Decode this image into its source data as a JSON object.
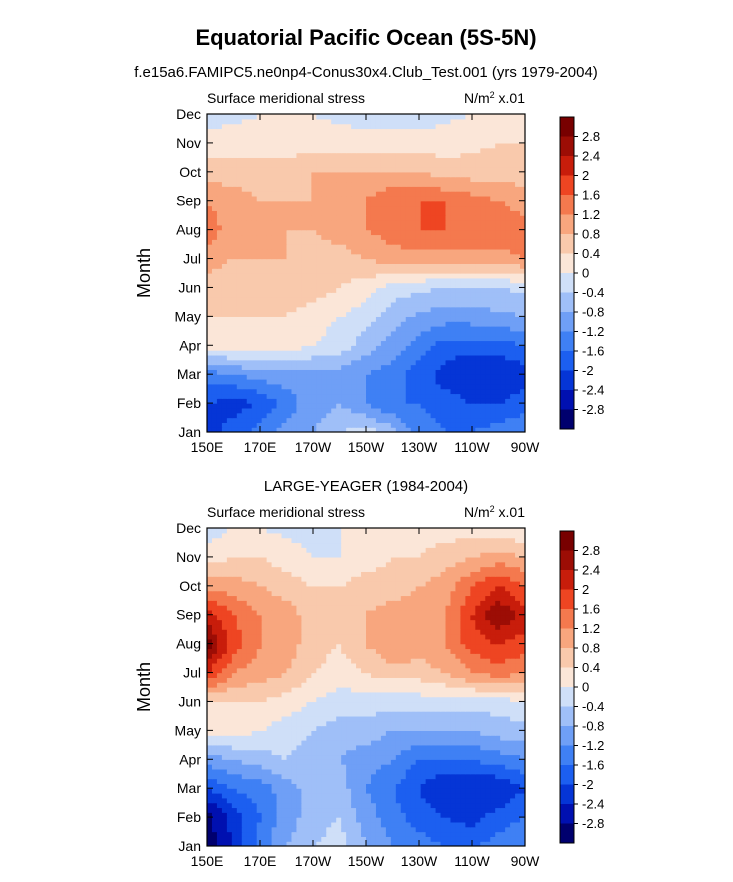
{
  "chart_data": [
    {
      "type": "heatmap",
      "title": "Equatorial Pacific Ocean (5S-5N)",
      "subtitle": "f.e15a6.FAMIPC5.ne0np4-Conus30x4.Club_Test.001 (yrs 1979-2004)",
      "left_label": "Surface meridional stress",
      "units_prefix": "N/m",
      "units_exp": "2",
      "units_suffix": " x.01",
      "ylabel": "Month",
      "x_ticks": [
        "150E",
        "170E",
        "170W",
        "150W",
        "130W",
        "110W",
        "90W"
      ],
      "y_ticks": [
        "Jan",
        "Feb",
        "Mar",
        "Apr",
        "May",
        "Jun",
        "Jul",
        "Aug",
        "Sep",
        "Oct",
        "Nov",
        "Dec"
      ],
      "x_range": [
        "150E",
        "90W"
      ],
      "levels": [
        -2.8,
        -2.4,
        -2,
        -1.6,
        -1.2,
        -0.8,
        -0.4,
        0,
        0.4,
        0.8,
        1.2,
        1.6,
        2,
        2.4,
        2.8
      ],
      "level_labels": [
        "2.8",
        "2.4",
        "2",
        "1.6",
        "1.2",
        "0.8",
        "0.4",
        "0",
        "-0.4",
        "-0.8",
        "-1.2",
        "-1.6",
        "-2",
        "-2.4",
        "-2.8"
      ],
      "columns_lon": [
        "150E",
        "160E",
        "170E",
        "180",
        "170W",
        "160W",
        "150W",
        "140W",
        "130W",
        "120W",
        "110W",
        "100W",
        "90W"
      ],
      "values": [
        [
          -2.2,
          -1.8,
          -1.4,
          -1.0,
          -0.8,
          -0.4,
          -0.2,
          -0.6,
          -1.4,
          -1.6,
          -1.6,
          -1.4,
          -1.2
        ],
        [
          -2.0,
          -2.2,
          -2.0,
          -1.4,
          -1.0,
          -0.8,
          -1.2,
          -1.6,
          -1.6,
          -1.8,
          -2.0,
          -2.0,
          -1.8
        ],
        [
          -1.4,
          -1.2,
          -1.0,
          -1.0,
          -1.0,
          -1.0,
          -1.2,
          -1.4,
          -1.8,
          -2.2,
          -2.4,
          -2.4,
          -2.2
        ],
        [
          0.2,
          0.2,
          0.2,
          0.2,
          0.0,
          -0.2,
          -0.6,
          -1.0,
          -1.4,
          -1.8,
          -1.8,
          -1.8,
          -1.6
        ],
        [
          0.4,
          0.4,
          0.4,
          0.4,
          0.2,
          0.0,
          -0.2,
          -0.6,
          -0.9,
          -1.0,
          -1.0,
          -0.9,
          -0.8
        ],
        [
          0.6,
          0.4,
          0.4,
          0.6,
          0.6,
          0.4,
          0.2,
          -0.2,
          -0.3,
          -0.4,
          -0.4,
          -0.4,
          -0.3
        ],
        [
          1.0,
          0.8,
          0.8,
          0.8,
          0.6,
          0.6,
          0.8,
          1.0,
          1.0,
          1.0,
          1.0,
          1.0,
          1.2
        ],
        [
          1.4,
          1.0,
          0.8,
          0.8,
          0.8,
          1.0,
          1.2,
          1.4,
          1.6,
          1.6,
          1.6,
          1.6,
          1.4
        ],
        [
          1.2,
          1.0,
          0.8,
          0.8,
          0.8,
          0.8,
          1.2,
          1.6,
          1.6,
          1.6,
          1.4,
          1.2,
          1.0
        ],
        [
          0.6,
          0.6,
          0.6,
          0.6,
          0.8,
          0.8,
          0.8,
          0.8,
          0.8,
          0.6,
          0.6,
          0.6,
          0.6
        ],
        [
          0.2,
          0.2,
          0.2,
          0.2,
          0.2,
          0.2,
          0.2,
          0.2,
          0.2,
          0.2,
          0.3,
          0.4,
          0.4
        ],
        [
          -0.2,
          -0.1,
          0.0,
          0.0,
          0.0,
          -0.1,
          -0.2,
          -0.2,
          -0.2,
          -0.1,
          0.0,
          0.1,
          0.2
        ]
      ]
    },
    {
      "type": "heatmap",
      "title": "LARGE-YEAGER (1984-2004)",
      "left_label": "Surface meridional stress",
      "units_prefix": "N/m",
      "units_exp": "2",
      "units_suffix": " x.01",
      "ylabel": "Month",
      "x_ticks": [
        "150E",
        "170E",
        "170W",
        "150W",
        "130W",
        "110W",
        "90W"
      ],
      "y_ticks": [
        "Jan",
        "Feb",
        "Mar",
        "Apr",
        "May",
        "Jun",
        "Jul",
        "Aug",
        "Sep",
        "Oct",
        "Nov",
        "Dec"
      ],
      "x_range": [
        "150E",
        "90W"
      ],
      "levels": [
        -2.8,
        -2.4,
        -2,
        -1.6,
        -1.2,
        -0.8,
        -0.4,
        0,
        0.4,
        0.8,
        1.2,
        1.6,
        2,
        2.4,
        2.8
      ],
      "level_labels": [
        "2.8",
        "2.4",
        "2",
        "1.6",
        "1.2",
        "0.8",
        "0.4",
        "0",
        "-0.4",
        "-0.8",
        "-1.2",
        "-1.6",
        "-2",
        "-2.4",
        "-2.8"
      ],
      "columns_lon": [
        "150E",
        "160E",
        "170E",
        "180",
        "170W",
        "160W",
        "150W",
        "140W",
        "130W",
        "120W",
        "110W",
        "100W",
        "90W"
      ],
      "values": [
        [
          -3.0,
          -2.4,
          -1.4,
          -0.8,
          -0.4,
          -0.2,
          -0.8,
          -1.2,
          -1.4,
          -1.6,
          -1.6,
          -1.4,
          -1.2
        ],
        [
          -3.0,
          -2.2,
          -1.6,
          -1.0,
          -0.6,
          -0.4,
          -1.0,
          -1.4,
          -1.8,
          -2.0,
          -2.2,
          -1.8,
          -1.6
        ],
        [
          -2.0,
          -1.6,
          -1.4,
          -1.0,
          -0.6,
          -0.6,
          -1.2,
          -1.6,
          -2.0,
          -2.4,
          -2.4,
          -2.4,
          -2.0
        ],
        [
          -1.0,
          -0.8,
          -0.6,
          -0.4,
          -0.6,
          -0.8,
          -1.0,
          -1.2,
          -1.6,
          -1.6,
          -1.6,
          -1.4,
          -1.2
        ],
        [
          0.2,
          0.2,
          0.0,
          -0.2,
          -0.4,
          -0.6,
          -0.6,
          -0.8,
          -0.8,
          -0.8,
          -0.8,
          -0.6,
          -0.6
        ],
        [
          0.4,
          0.4,
          0.4,
          0.2,
          0.0,
          -0.2,
          -0.2,
          -0.2,
          -0.2,
          -0.2,
          -0.2,
          -0.2,
          0.0
        ],
        [
          2.0,
          1.2,
          1.0,
          0.8,
          0.4,
          0.2,
          0.4,
          0.6,
          0.6,
          0.8,
          1.2,
          1.4,
          1.2
        ],
        [
          3.0,
          1.8,
          1.2,
          1.0,
          0.6,
          0.4,
          0.8,
          1.2,
          1.0,
          1.2,
          1.8,
          2.0,
          1.8
        ],
        [
          2.2,
          1.6,
          1.2,
          1.0,
          0.6,
          0.4,
          0.8,
          1.0,
          1.0,
          1.2,
          2.0,
          2.8,
          2.2
        ],
        [
          1.0,
          1.0,
          0.8,
          0.6,
          0.4,
          0.4,
          0.6,
          0.6,
          0.8,
          1.0,
          1.6,
          2.0,
          1.6
        ],
        [
          0.2,
          0.4,
          0.4,
          0.2,
          0.0,
          0.0,
          0.2,
          0.4,
          0.4,
          0.6,
          0.8,
          1.0,
          0.8
        ],
        [
          -0.2,
          0.0,
          0.0,
          -0.1,
          -0.2,
          0.0,
          0.2,
          0.4,
          0.2,
          0.2,
          0.2,
          0.2,
          0.0
        ]
      ]
    }
  ],
  "palette": [
    "#00006e",
    "#0010b0",
    "#0535d6",
    "#1c5ff0",
    "#3f80f4",
    "#6f9ff6",
    "#9fbff8",
    "#cfdff8",
    "#fbe6d8",
    "#f9c9ac",
    "#f8a67e",
    "#f4794e",
    "#ee4522",
    "#c81d0b",
    "#9c0d05",
    "#780000"
  ]
}
